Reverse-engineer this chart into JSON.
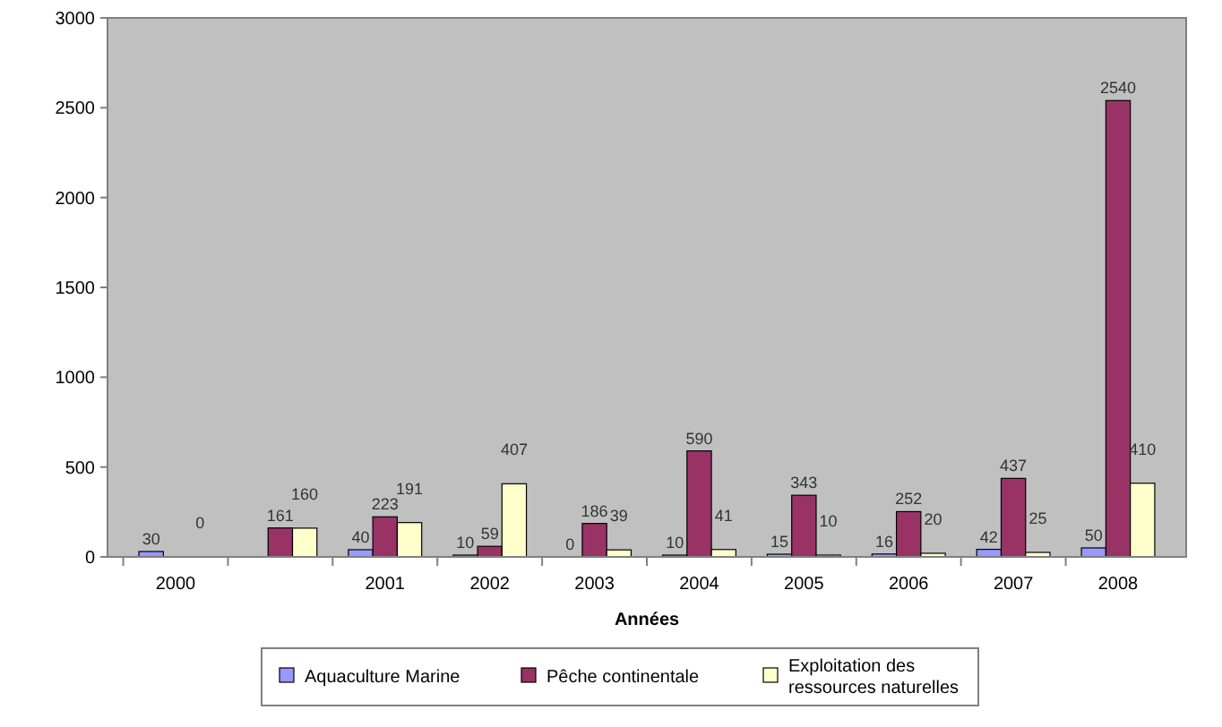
{
  "chart_data": {
    "type": "bar",
    "xlabel": "Années",
    "categories": [
      "2000",
      null,
      "2001",
      "2002",
      "2003",
      "2004",
      "2005",
      "2006",
      "2007",
      "2008"
    ],
    "series": [
      {
        "name": "Aquaculture Marine",
        "color": "#9999ff",
        "values": [
          30,
          null,
          40,
          10,
          0,
          10,
          15,
          16,
          42,
          50
        ]
      },
      {
        "name": "Pêche continentale",
        "color": "#993366",
        "values": [
          null,
          161,
          223,
          59,
          186,
          590,
          343,
          252,
          437,
          2540
        ]
      },
      {
        "name": "Exploitation des ressources naturelles",
        "color": "#ffffcc",
        "values": [
          0,
          160,
          191,
          407,
          39,
          41,
          10,
          20,
          25,
          410
        ]
      }
    ],
    "ylim": [
      0,
      3000
    ],
    "yticks": [
      0,
      500,
      1000,
      1500,
      2000,
      2500,
      3000
    ],
    "data_labels": true,
    "legend": "bottom"
  }
}
